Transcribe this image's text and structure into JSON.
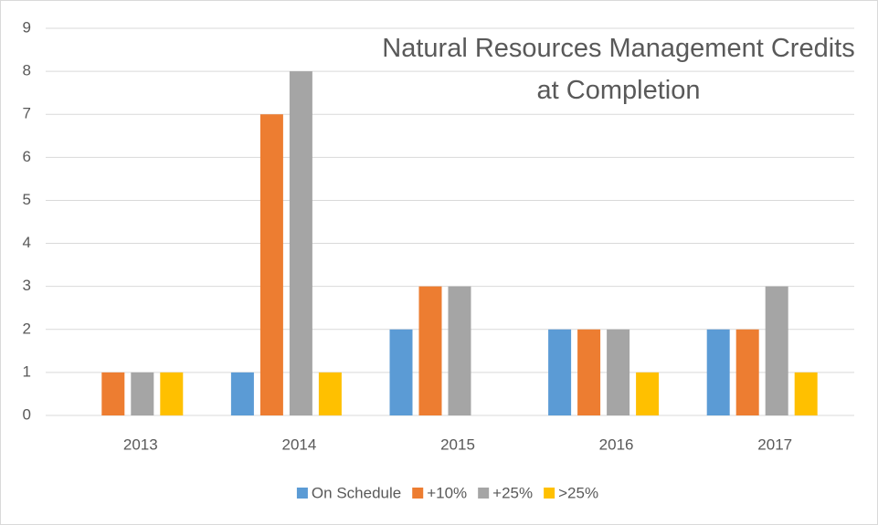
{
  "chart_data": {
    "type": "bar",
    "title": "Natural Resources Management Credits at Completion",
    "categories": [
      "2013",
      "2014",
      "2015",
      "2016",
      "2017"
    ],
    "series": [
      {
        "name": "On Schedule",
        "color": "#5b9bd5",
        "values": [
          0,
          1,
          2,
          2,
          2
        ]
      },
      {
        "name": "+10%",
        "color": "#ed7d31",
        "values": [
          1,
          7,
          3,
          2,
          2
        ]
      },
      {
        "name": "+25%",
        "color": "#a5a5a5",
        "values": [
          1,
          8,
          3,
          2,
          3
        ]
      },
      {
        "name": ">25%",
        "color": "#ffc000",
        "values": [
          1,
          1,
          0,
          1,
          1
        ]
      }
    ],
    "ylim": [
      0,
      9
    ],
    "yticks": [
      0,
      1,
      2,
      3,
      4,
      5,
      6,
      7,
      8,
      9
    ],
    "grid": true,
    "legend": "bottom"
  }
}
